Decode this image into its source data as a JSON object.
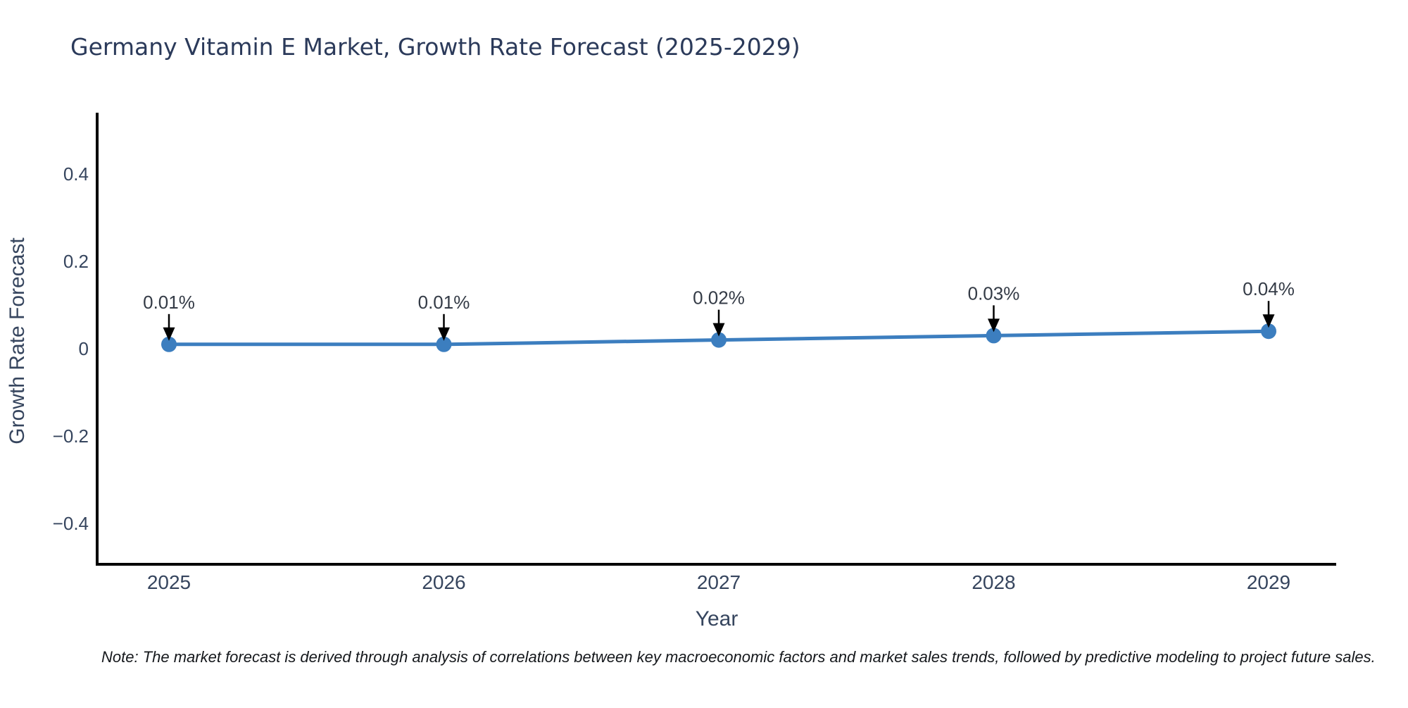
{
  "header": {
    "title": "Germany Vitamin E Market, Growth Rate Forecast (2025-2029)"
  },
  "footer": {
    "note": "Note: The market forecast is derived through analysis of correlations between key macroeconomic factors and market sales trends, followed by predictive modeling to project future sales."
  },
  "chart_data": {
    "type": "line",
    "title": "Germany Vitamin E Market, Growth Rate Forecast (2025-2029)",
    "xlabel": "Year",
    "ylabel": "Growth Rate Forecast",
    "x": [
      "2025",
      "2026",
      "2027",
      "2028",
      "2029"
    ],
    "values": [
      0.01,
      0.01,
      0.02,
      0.03,
      0.04
    ],
    "point_labels": [
      "0.01%",
      "0.01%",
      "0.02%",
      "0.03%",
      "0.04%"
    ],
    "yticks": {
      "values": [
        0.4,
        0.2,
        0,
        -0.2,
        -0.4
      ],
      "labels": [
        "0.4",
        "0.2",
        "0",
        "−0.2",
        "−0.4"
      ]
    },
    "ylim": [
      -0.49,
      0.54
    ],
    "grid": false,
    "legend": "none",
    "annotations_have_arrows": true,
    "styles": {
      "line_color": "#3c7ebf",
      "marker_color": "#3c7ebf",
      "arrow_color": "#000000",
      "axis_color": "#000000",
      "title_color": "#2b3a5a",
      "label_color": "#36455e",
      "annotation_color": "#343b46",
      "note_color": "#15181c",
      "background": "#ffffff"
    }
  }
}
